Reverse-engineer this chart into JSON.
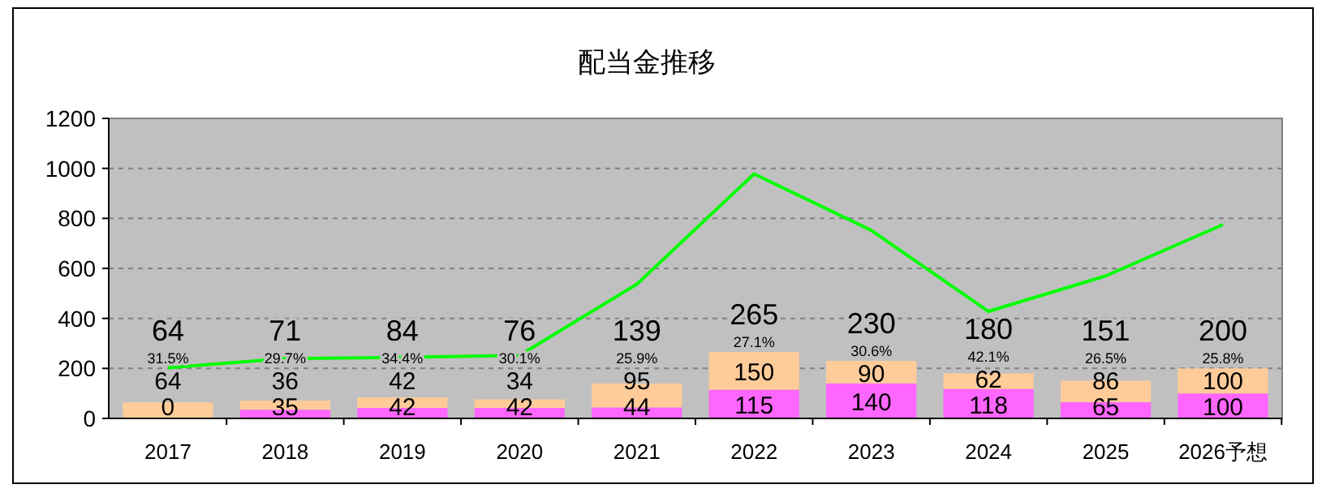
{
  "chart_data": {
    "type": "bar",
    "title": "配当金推移",
    "stacked": true,
    "categories": [
      "2017",
      "2018",
      "2019",
      "2020",
      "2021",
      "2022",
      "2023",
      "2024",
      "2025",
      "2026予想"
    ],
    "series": [
      {
        "type": "bar",
        "color": "#ff66ff",
        "values": [
          0,
          35,
          42,
          42,
          44,
          115,
          140,
          118,
          65,
          100
        ],
        "value_labels": [
          "0",
          "35",
          "42",
          "42",
          "44",
          "115",
          "140",
          "118",
          "65",
          "100"
        ]
      },
      {
        "type": "bar",
        "color": "#ffcc99",
        "values": [
          64,
          36,
          42,
          34,
          95,
          150,
          90,
          62,
          86,
          100
        ],
        "value_labels": [
          "64",
          "36",
          "42",
          "34",
          "95",
          "150",
          "90",
          "62",
          "86",
          "100"
        ]
      },
      {
        "type": "line",
        "color": "#00ff00",
        "values": [
          203,
          239,
          244,
          252,
          537,
          978,
          752,
          428,
          570,
          775
        ]
      }
    ],
    "totals": [
      "64",
      "71",
      "84",
      "76",
      "139",
      "265",
      "230",
      "180",
      "151",
      "200"
    ],
    "annotations": [
      "31.5%",
      "29.7%",
      "34.4%",
      "30.1%",
      "25.9%",
      "27.1%",
      "30.6%",
      "42.1%",
      "26.5%",
      "25.8%"
    ],
    "ylim": [
      0,
      1200
    ],
    "yticks": [
      0,
      200,
      400,
      600,
      800,
      1000,
      1200
    ],
    "grid": "y"
  }
}
